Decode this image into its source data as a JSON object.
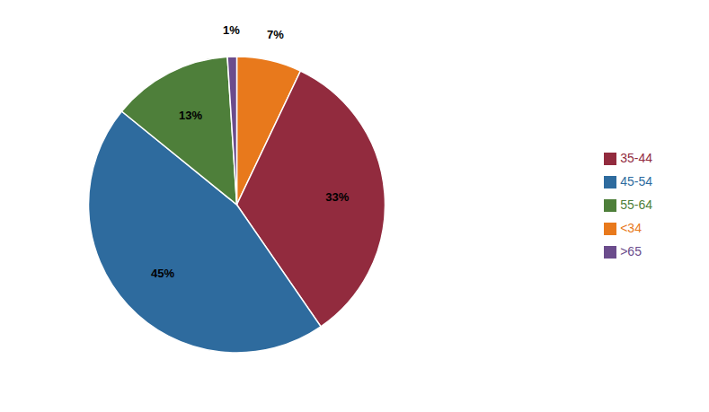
{
  "chart_data": {
    "type": "pie",
    "categories": [
      "<34",
      "35-44",
      "45-54",
      "55-64",
      ">65"
    ],
    "values": [
      7,
      33,
      45,
      13,
      1
    ],
    "value_labels": [
      "7%",
      "33%",
      "45%",
      "13%",
      "1%"
    ],
    "colors": [
      "#E8791C",
      "#922B3E",
      "#2E6B9E",
      "#4E7F3A",
      "#6B4C8C"
    ],
    "legend": "right",
    "data_labels": true
  }
}
